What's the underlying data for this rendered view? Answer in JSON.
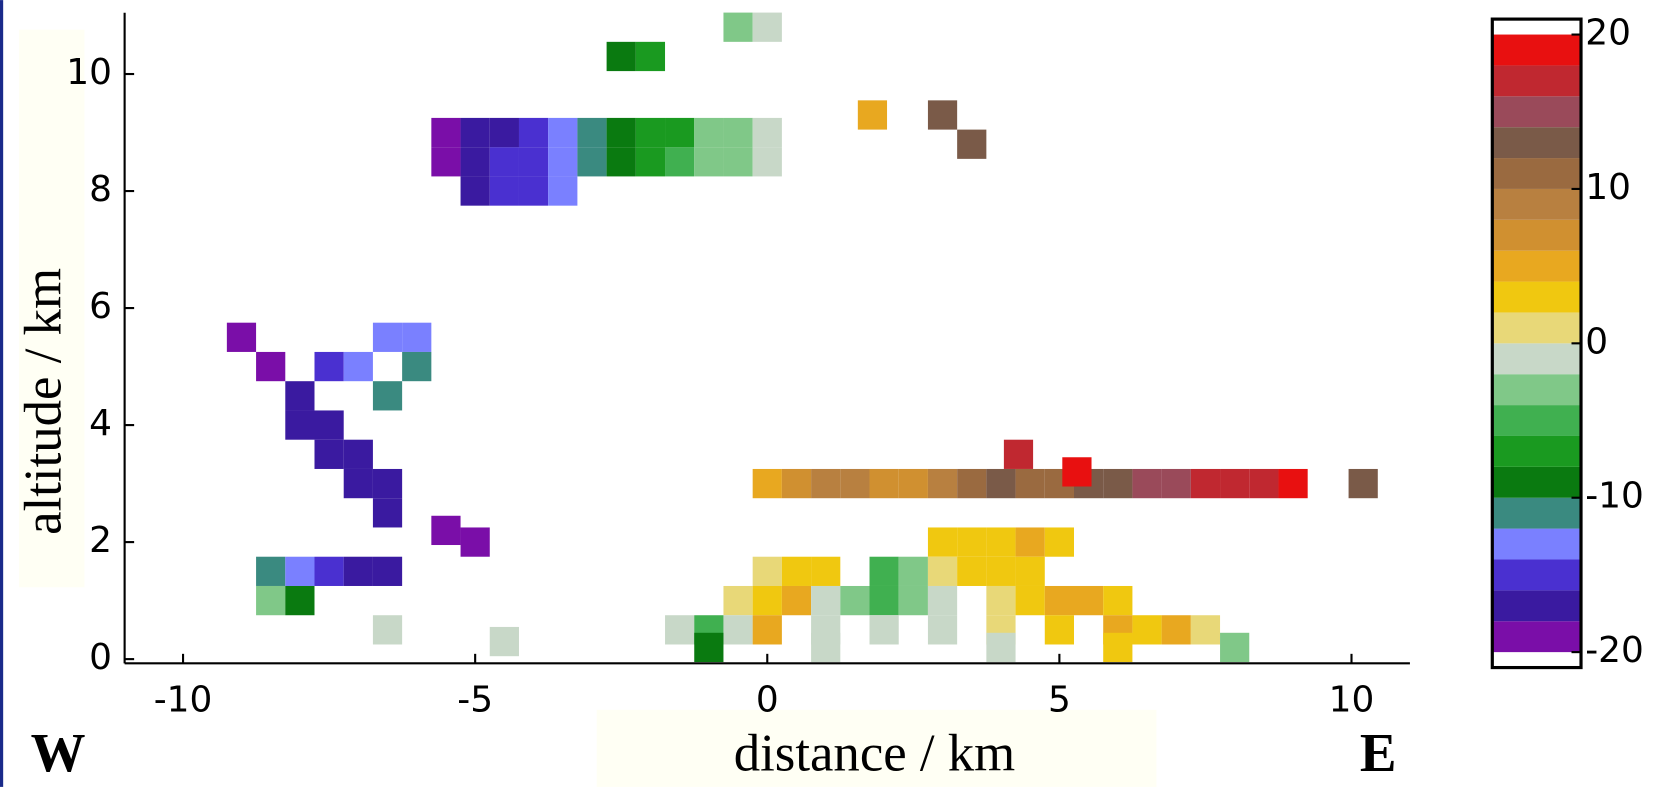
{
  "chart_data": {
    "type": "heatmap",
    "xlabel": "distance  / km",
    "ylabel": "altitude  / km",
    "annotations": [
      "W",
      "E"
    ],
    "xlim": [
      -11,
      11
    ],
    "ylim": [
      0,
      11
    ],
    "xticks": [
      -10,
      -5,
      0,
      5,
      10
    ],
    "yticks": [
      0,
      2,
      4,
      6,
      8,
      10
    ],
    "cell_size": 0.5,
    "x": [
      -5.5,
      -5,
      -4.5,
      -4,
      -3.5,
      -3,
      -2.5,
      -2,
      -1.5,
      -1,
      -0.5,
      0,
      -5.5,
      -5,
      -4.5,
      -4,
      -3.5,
      -3,
      -2.5,
      -2,
      -1.5,
      -1,
      -0.5,
      0,
      -5,
      -4.5,
      -4,
      -3.5,
      -2.5,
      -2,
      -0.5,
      0,
      1.8,
      3,
      3.5,
      -9,
      -8.5,
      -8,
      -7.5,
      -7,
      -6.5,
      -6.5,
      -8,
      -7.5,
      -7,
      -7.5,
      -7,
      -6.5,
      -6,
      -6,
      -6.5,
      -5.5,
      -5,
      -8.5,
      -8,
      -7.5,
      -7,
      -6.5,
      -8.5,
      -8,
      0,
      0.5,
      1,
      1.5,
      2,
      2.5,
      3,
      3.5,
      4,
      4.5,
      5,
      5.5,
      6,
      6.5,
      7,
      7.5,
      8,
      8.5,
      9,
      10.2,
      4.3,
      5.3,
      3,
      3.5,
      4,
      4.5,
      5,
      0,
      0.5,
      1,
      2,
      2.5,
      3,
      3.5,
      4,
      4.5,
      -0.5,
      0,
      0.5,
      1,
      1.5,
      2,
      2.5,
      3,
      4,
      4.5,
      5,
      5.5,
      6,
      -1.5,
      -1,
      -0.5,
      0,
      1,
      2,
      3,
      4,
      5,
      6,
      6.5,
      7,
      7.5,
      -1,
      1,
      4,
      6,
      8,
      -6.5,
      -4.5
    ],
    "y": [
      8.5,
      8.5,
      8.5,
      8.5,
      8.5,
      8.5,
      8.5,
      8.5,
      8.5,
      8.5,
      8.5,
      8.5,
      9,
      9,
      9,
      9,
      9,
      9,
      9,
      9,
      9,
      9,
      9,
      9,
      8,
      8,
      8,
      8,
      10.3,
      10.3,
      10.8,
      10.8,
      9.3,
      9.3,
      8.8,
      5.5,
      5,
      4.5,
      4,
      3.5,
      3,
      2.5,
      4,
      3.5,
      3,
      5,
      5,
      5.5,
      5.5,
      5,
      4.5,
      2.2,
      2,
      1.5,
      1.5,
      1.5,
      1.5,
      1.5,
      1,
      1,
      3,
      3,
      3,
      3,
      3,
      3,
      3,
      3,
      3,
      3,
      3,
      3,
      3,
      3,
      3,
      3,
      3,
      3,
      3,
      3,
      3.5,
      3.2,
      2,
      2,
      2,
      2,
      2,
      1.5,
      1.5,
      1.5,
      1.5,
      1.5,
      1.5,
      1.5,
      1.5,
      1.5,
      1,
      1,
      1,
      1,
      1,
      1,
      1,
      1,
      1,
      1,
      1,
      1,
      1,
      0.5,
      0.5,
      0.5,
      0.5,
      0.5,
      0.5,
      0.5,
      0.5,
      0.5,
      0.5,
      0.5,
      0.5,
      0.5,
      0.2,
      0.2,
      0.2,
      0.2,
      0.2,
      0.5,
      0.3
    ],
    "values": [
      -19,
      -17,
      -16,
      -15,
      -13,
      -11,
      -9,
      -8,
      -6,
      -4,
      -3,
      -1,
      -19,
      -18,
      -17,
      -15,
      -13,
      -11,
      -9,
      -8,
      -7,
      -4,
      -3,
      -1,
      -18,
      -16,
      -15,
      -14,
      -9,
      -8,
      -3,
      -2,
      5,
      12,
      13,
      -19,
      -19,
      -17,
      -18,
      -17,
      -17,
      -18,
      -18,
      -17,
      -17,
      -16,
      -14,
      -13,
      -14,
      -12,
      -12,
      -19,
      -19,
      -11,
      -13,
      -16,
      -17,
      -17,
      -3,
      -9,
      5,
      6,
      9,
      8,
      6,
      7,
      8,
      11,
      12,
      11,
      10,
      12,
      12,
      14,
      15,
      16,
      16,
      17,
      19,
      13,
      17,
      18,
      3,
      2,
      3,
      4,
      3,
      1,
      2,
      3,
      -5,
      -3,
      1,
      2,
      3,
      3,
      1,
      3,
      5,
      -2,
      -4,
      -6,
      -3,
      -1,
      1,
      2,
      4,
      4,
      3,
      -2,
      -6,
      -1,
      5,
      -1,
      -1,
      -2,
      0,
      3,
      4,
      3,
      4,
      1,
      -9,
      -1,
      -1,
      3,
      -3,
      -1,
      -1
    ],
    "colorbar": {
      "lim": [
        -21,
        21
      ],
      "ticks": [
        -20,
        -10,
        0,
        10,
        20
      ],
      "levels": [
        -20,
        -18,
        -16,
        -14,
        -12,
        -10,
        -8,
        -6,
        -4,
        -2,
        0,
        2,
        4,
        6,
        8,
        10,
        12,
        14,
        16,
        18,
        20
      ],
      "colors": [
        "#7a0ea8",
        "#3a1aa0",
        "#4a30d0",
        "#7a80ff",
        "#3a8a80",
        "#0a7a10",
        "#1a9a20",
        "#40b050",
        "#80c888",
        "#c8d8c8",
        "#e8d878",
        "#f0c810",
        "#e8a820",
        "#d09030",
        "#b88040",
        "#9a6a40",
        "#7a5a48",
        "#9a4a5a",
        "#c02830",
        "#e81010"
      ]
    }
  }
}
